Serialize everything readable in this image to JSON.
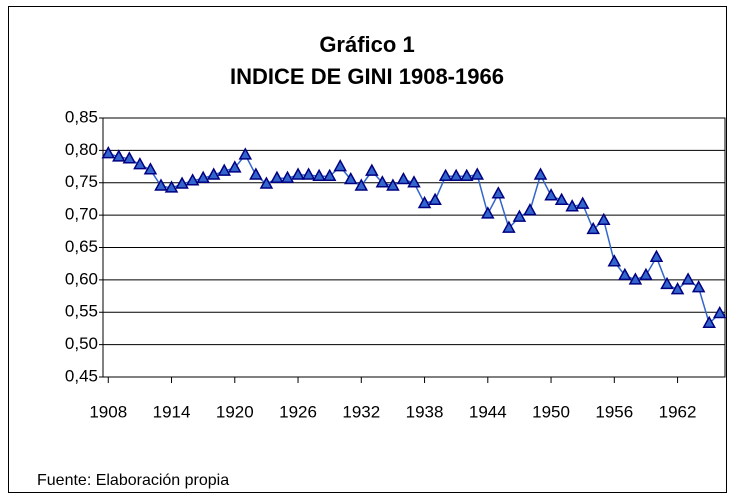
{
  "chart_data": {
    "type": "line",
    "title": [
      "Gráfico 1",
      "INDICE DE GINI 1908-1966"
    ],
    "source": "Fuente: Elaboración propia",
    "x": [
      1908,
      1909,
      1910,
      1911,
      1912,
      1913,
      1914,
      1915,
      1916,
      1917,
      1918,
      1919,
      1920,
      1921,
      1922,
      1923,
      1924,
      1925,
      1926,
      1927,
      1928,
      1929,
      1930,
      1931,
      1932,
      1933,
      1934,
      1935,
      1936,
      1937,
      1938,
      1939,
      1940,
      1941,
      1942,
      1943,
      1944,
      1945,
      1946,
      1947,
      1948,
      1949,
      1950,
      1951,
      1952,
      1953,
      1954,
      1955,
      1956,
      1957,
      1958,
      1959,
      1960,
      1961,
      1962,
      1963,
      1964,
      1965,
      1966
    ],
    "values": [
      0.795,
      0.79,
      0.787,
      0.778,
      0.77,
      0.745,
      0.742,
      0.748,
      0.753,
      0.757,
      0.762,
      0.768,
      0.773,
      0.793,
      0.762,
      0.748,
      0.757,
      0.757,
      0.762,
      0.762,
      0.76,
      0.76,
      0.775,
      0.755,
      0.745,
      0.768,
      0.75,
      0.745,
      0.755,
      0.75,
      0.718,
      0.723,
      0.76,
      0.76,
      0.76,
      0.762,
      0.702,
      0.733,
      0.68,
      0.697,
      0.707,
      0.762,
      0.73,
      0.723,
      0.713,
      0.717,
      0.678,
      0.692,
      0.628,
      0.607,
      0.6,
      0.607,
      0.635,
      0.593,
      0.585,
      0.6,
      0.588,
      0.533,
      0.548
    ],
    "color": "#3366cc",
    "marker_color": "#000080",
    "xlim": [
      1907.5,
      1966.5
    ],
    "xticks": [
      1908,
      1914,
      1920,
      1926,
      1932,
      1938,
      1944,
      1950,
      1956,
      1962
    ],
    "ylim": [
      0.45,
      0.85
    ],
    "yticks": [
      {
        "value": 0.45,
        "label": "0,45"
      },
      {
        "value": 0.5,
        "label": "0,50"
      },
      {
        "value": 0.55,
        "label": "0,55"
      },
      {
        "value": 0.6,
        "label": "0,60"
      },
      {
        "value": 0.65,
        "label": "0,65"
      },
      {
        "value": 0.7,
        "label": "0,70"
      },
      {
        "value": 0.75,
        "label": "0,75"
      },
      {
        "value": 0.8,
        "label": "0,80"
      },
      {
        "value": 0.85,
        "label": "0,85"
      }
    ],
    "grid": true
  }
}
